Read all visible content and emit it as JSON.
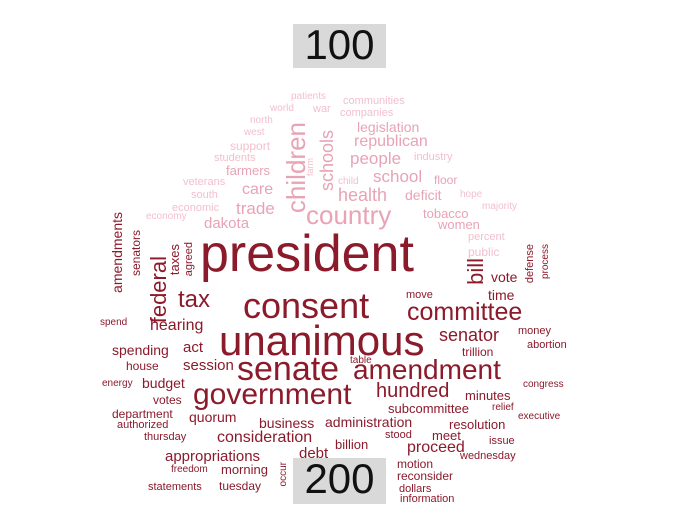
{
  "labels": {
    "top": "100",
    "bottom": "200"
  },
  "colors": {
    "dark": "#8b1a2b",
    "medium": "#b8475c",
    "light": "#e8a3b6",
    "pale": "#f2bfcd"
  },
  "words": [
    {
      "text": "patients",
      "tone": "pale"
    },
    {
      "text": "world",
      "tone": "pale"
    },
    {
      "text": "war",
      "tone": "pale"
    },
    {
      "text": "communities",
      "tone": "pale"
    },
    {
      "text": "companies",
      "tone": "pale"
    },
    {
      "text": "north",
      "tone": "pale"
    },
    {
      "text": "legislation",
      "tone": "light"
    },
    {
      "text": "west",
      "tone": "pale"
    },
    {
      "text": "republican",
      "tone": "light"
    },
    {
      "text": "support",
      "tone": "pale"
    },
    {
      "text": "children",
      "tone": "light"
    },
    {
      "text": "schools",
      "tone": "light"
    },
    {
      "text": "farm",
      "tone": "pale"
    },
    {
      "text": "people",
      "tone": "light"
    },
    {
      "text": "industry",
      "tone": "pale"
    },
    {
      "text": "students",
      "tone": "pale"
    },
    {
      "text": "farmers",
      "tone": "light"
    },
    {
      "text": "school",
      "tone": "light"
    },
    {
      "text": "veterans",
      "tone": "pale"
    },
    {
      "text": "child",
      "tone": "pale"
    },
    {
      "text": "floor",
      "tone": "light"
    },
    {
      "text": "care",
      "tone": "light"
    },
    {
      "text": "health",
      "tone": "light"
    },
    {
      "text": "deficit",
      "tone": "light"
    },
    {
      "text": "south",
      "tone": "pale"
    },
    {
      "text": "hope",
      "tone": "pale"
    },
    {
      "text": "economic",
      "tone": "pale"
    },
    {
      "text": "trade",
      "tone": "light"
    },
    {
      "text": "country",
      "tone": "light"
    },
    {
      "text": "majority",
      "tone": "pale"
    },
    {
      "text": "tobacco",
      "tone": "light"
    },
    {
      "text": "economy",
      "tone": "pale"
    },
    {
      "text": "dakota",
      "tone": "light"
    },
    {
      "text": "women",
      "tone": "light"
    },
    {
      "text": "amendments",
      "tone": "dark"
    },
    {
      "text": "senators",
      "tone": "dark"
    },
    {
      "text": "taxes",
      "tone": "dark"
    },
    {
      "text": "agreed",
      "tone": "dark"
    },
    {
      "text": "percent",
      "tone": "pale"
    },
    {
      "text": "federal",
      "tone": "dark"
    },
    {
      "text": "president",
      "tone": "dark"
    },
    {
      "text": "public",
      "tone": "pale"
    },
    {
      "text": "defense",
      "tone": "dark"
    },
    {
      "text": "process",
      "tone": "dark"
    },
    {
      "text": "vote",
      "tone": "dark"
    },
    {
      "text": "bill",
      "tone": "dark"
    },
    {
      "text": "time",
      "tone": "dark"
    },
    {
      "text": "tax",
      "tone": "dark"
    },
    {
      "text": "consent",
      "tone": "dark"
    },
    {
      "text": "move",
      "tone": "dark"
    },
    {
      "text": "committee",
      "tone": "dark"
    },
    {
      "text": "spend",
      "tone": "dark"
    },
    {
      "text": "hearing",
      "tone": "dark"
    },
    {
      "text": "senator",
      "tone": "dark"
    },
    {
      "text": "money",
      "tone": "dark"
    },
    {
      "text": "unanimous",
      "tone": "dark"
    },
    {
      "text": "spending",
      "tone": "dark"
    },
    {
      "text": "act",
      "tone": "dark"
    },
    {
      "text": "abortion",
      "tone": "dark"
    },
    {
      "text": "trillion",
      "tone": "dark"
    },
    {
      "text": "table",
      "tone": "dark"
    },
    {
      "text": "house",
      "tone": "dark"
    },
    {
      "text": "session",
      "tone": "dark"
    },
    {
      "text": "senate",
      "tone": "dark"
    },
    {
      "text": "amendment",
      "tone": "dark"
    },
    {
      "text": "energy",
      "tone": "dark"
    },
    {
      "text": "budget",
      "tone": "dark"
    },
    {
      "text": "congress",
      "tone": "dark"
    },
    {
      "text": "hundred",
      "tone": "dark"
    },
    {
      "text": "votes",
      "tone": "dark"
    },
    {
      "text": "government",
      "tone": "dark"
    },
    {
      "text": "minutes",
      "tone": "dark"
    },
    {
      "text": "department",
      "tone": "dark"
    },
    {
      "text": "subcommittee",
      "tone": "dark"
    },
    {
      "text": "relief",
      "tone": "dark"
    },
    {
      "text": "quorum",
      "tone": "dark"
    },
    {
      "text": "executive",
      "tone": "dark"
    },
    {
      "text": "authorized",
      "tone": "dark"
    },
    {
      "text": "business",
      "tone": "dark"
    },
    {
      "text": "administration",
      "tone": "dark"
    },
    {
      "text": "resolution",
      "tone": "dark"
    },
    {
      "text": "thursday",
      "tone": "dark"
    },
    {
      "text": "consideration",
      "tone": "dark"
    },
    {
      "text": "stood",
      "tone": "dark"
    },
    {
      "text": "meet",
      "tone": "dark"
    },
    {
      "text": "issue",
      "tone": "dark"
    },
    {
      "text": "billion",
      "tone": "dark"
    },
    {
      "text": "appropriations",
      "tone": "dark"
    },
    {
      "text": "debt",
      "tone": "dark"
    },
    {
      "text": "proceed",
      "tone": "dark"
    },
    {
      "text": "wednesday",
      "tone": "dark"
    },
    {
      "text": "freedom",
      "tone": "dark"
    },
    {
      "text": "morning",
      "tone": "dark"
    },
    {
      "text": "motion",
      "tone": "dark"
    },
    {
      "text": "occur",
      "tone": "dark"
    },
    {
      "text": "reconsider",
      "tone": "dark"
    },
    {
      "text": "statements",
      "tone": "dark"
    },
    {
      "text": "tuesday",
      "tone": "dark"
    },
    {
      "text": "dollars",
      "tone": "dark"
    },
    {
      "text": "information",
      "tone": "dark"
    }
  ]
}
